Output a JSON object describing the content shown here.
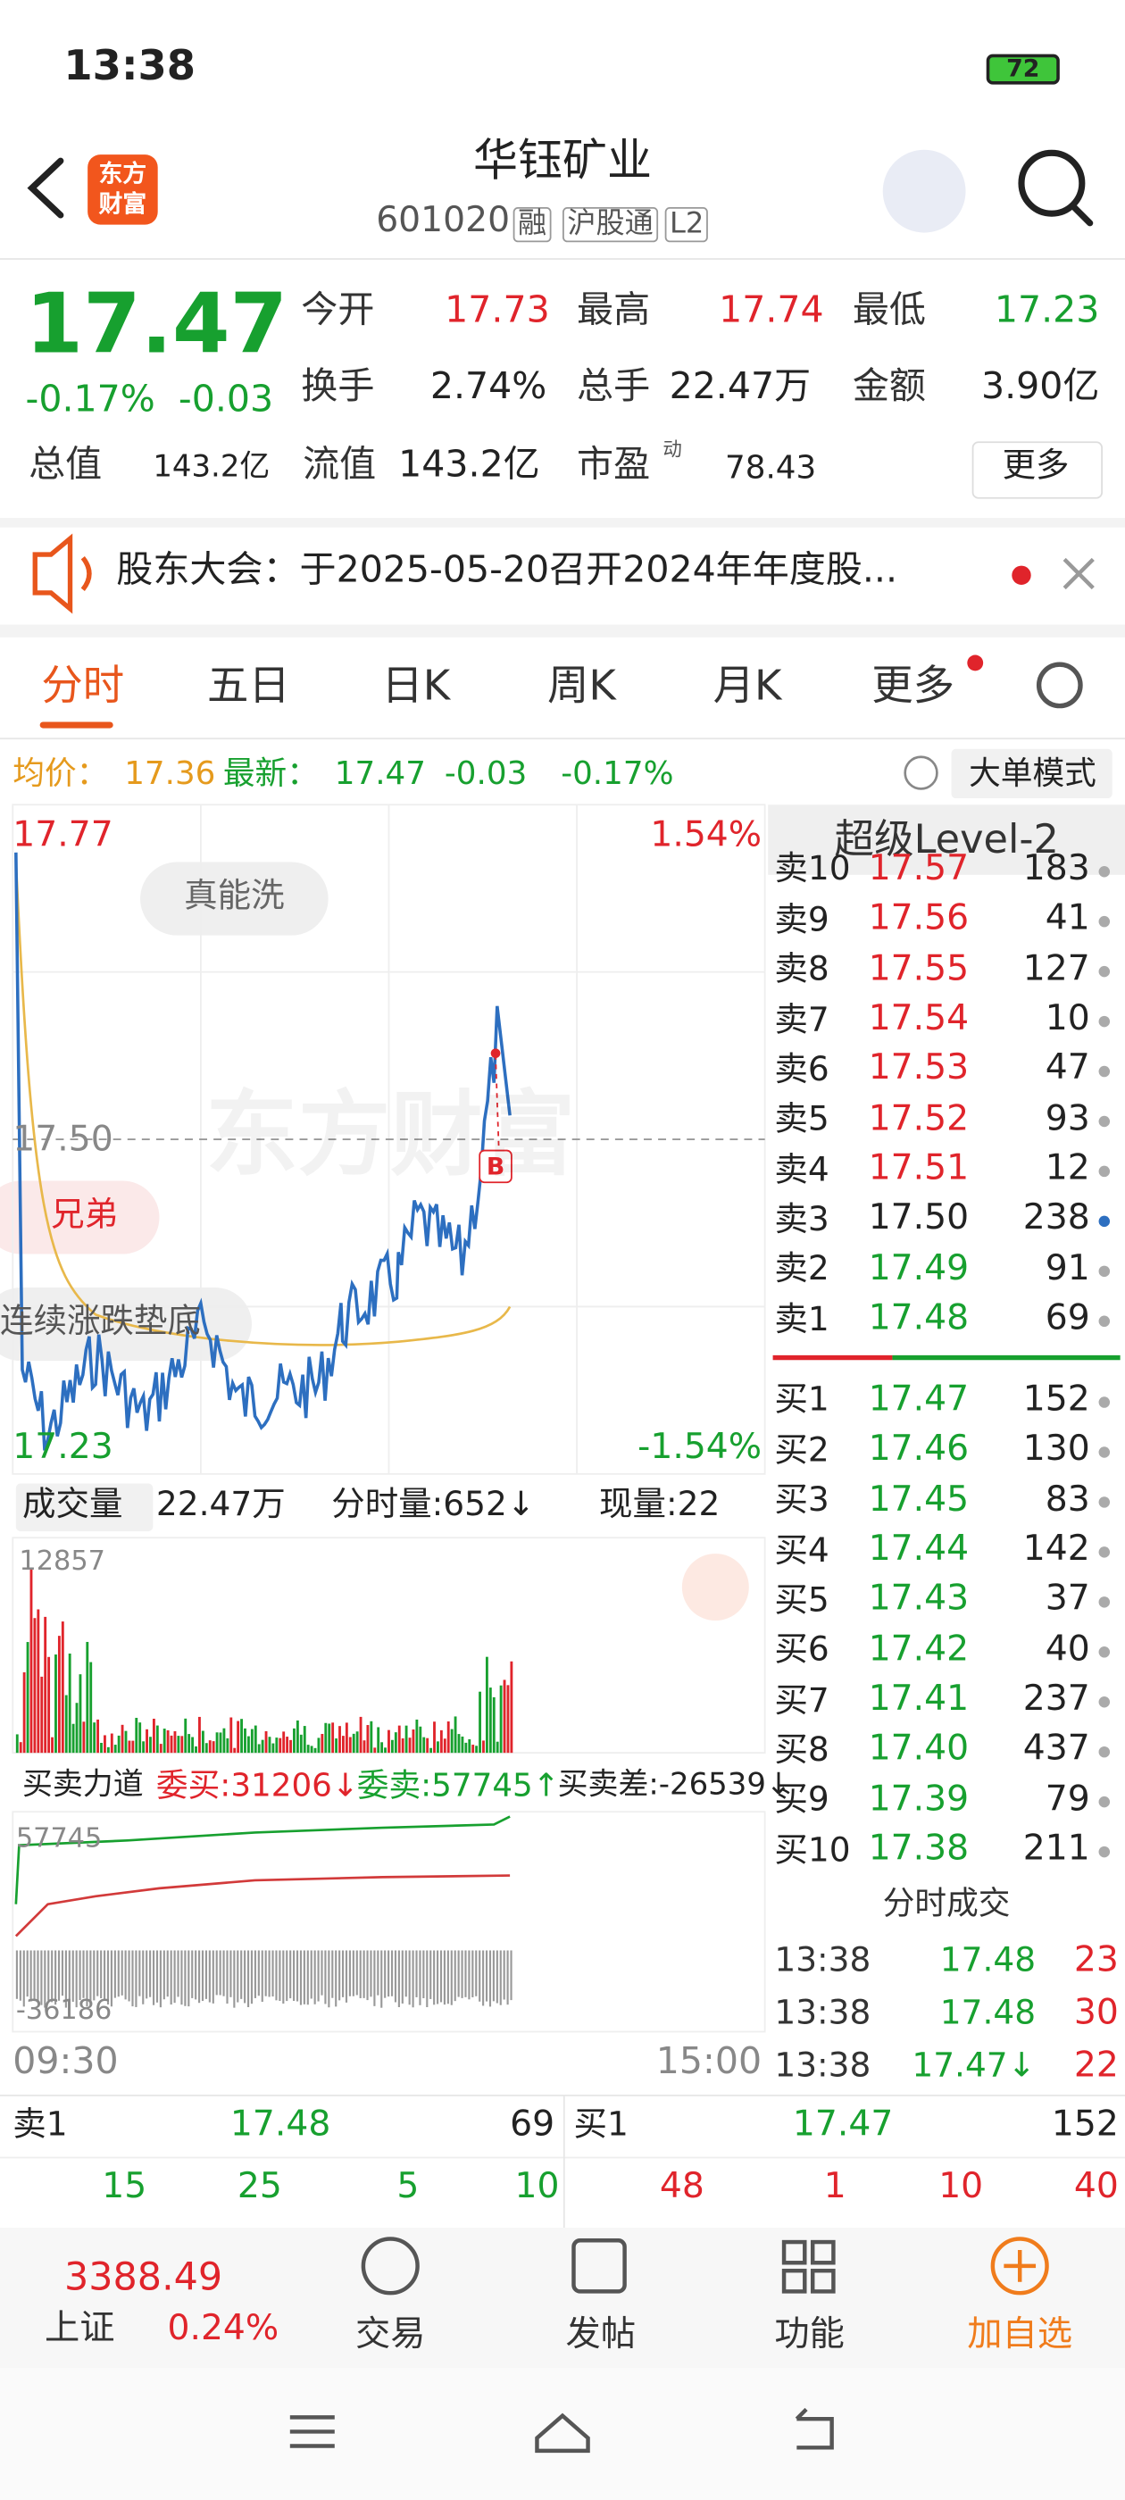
{
  "status_bar": {
    "time": "13:38",
    "battery": "72"
  },
  "header": {
    "title": "华钰矿业",
    "code": "601020",
    "tags": [
      "融",
      "沪股通",
      "L2"
    ],
    "logo": [
      "东方",
      "财富"
    ]
  },
  "quote": {
    "price": "17.47",
    "change_percent": "-0.17%",
    "change": "-0.03",
    "fields": [
      {
        "label": "今开",
        "value": "17.73"
      },
      {
        "label": "最高",
        "value": "17.74"
      },
      {
        "label": "最低",
        "value": "17.23"
      },
      {
        "label": "换手",
        "value": "2.74%"
      },
      {
        "label": "总手",
        "value": "22.47万"
      },
      {
        "label": "金额",
        "value": "3.90亿"
      },
      {
        "label": "总值",
        "value": "143.2亿"
      },
      {
        "label": "流值",
        "value": "143.2亿"
      },
      {
        "label": "市盈",
        "value": "78.43"
      }
    ],
    "pe_mark": "动",
    "more": "更多"
  },
  "notice": "股东大会：于2025-05-20召开2024年年度股...",
  "tabs": [
    "分时",
    "五日",
    "日K",
    "周K",
    "月K",
    "更多"
  ],
  "info": {
    "avg_label": "均价：",
    "avg": "17.36",
    "latest_label": "最新：",
    "latest": "17.47",
    "change": "-0.03",
    "change_percent": "-0.17%",
    "mode": "大单模式"
  },
  "chart": {
    "high": "17.77",
    "high_percent": "1.54%",
    "low": "17.23",
    "low_percent": "-1.54%",
    "mid": "17.50",
    "tags": [
      "真能洗",
      "兄弟",
      "连续涨跌垫底"
    ],
    "watermark": "东方财富",
    "marker": "B",
    "time_start": "09:30",
    "time_end": "15:00"
  },
  "volume": {
    "label": "成交量",
    "total": "22.47万",
    "minute": "分时量:652↓",
    "current": "现量:22",
    "max": "12857"
  },
  "force": {
    "label": "买卖力道",
    "bid": "委买:31206↓",
    "ask": "委卖:57745↑",
    "diff": "买卖差:-26539↓",
    "top": "57745",
    "bottom": "-36186"
  },
  "order_book": {
    "title": "超级Level-2",
    "asks": [
      {
        "label": "卖10",
        "price": "17.57",
        "volume": "183",
        "color": "#e0242b"
      },
      {
        "label": "卖9",
        "price": "17.56",
        "volume": "41",
        "color": "#e0242b"
      },
      {
        "label": "卖8",
        "price": "17.55",
        "volume": "127",
        "color": "#e0242b"
      },
      {
        "label": "卖7",
        "price": "17.54",
        "volume": "10",
        "color": "#e0242b"
      },
      {
        "label": "卖6",
        "price": "17.53",
        "volume": "47",
        "color": "#e0242b"
      },
      {
        "label": "卖5",
        "price": "17.52",
        "volume": "93",
        "color": "#e0242b"
      },
      {
        "label": "卖4",
        "price": "17.51",
        "volume": "12",
        "color": "#e0242b"
      },
      {
        "label": "卖3",
        "price": "17.50",
        "volume": "238",
        "color": "#222222"
      },
      {
        "label": "卖2",
        "price": "17.49",
        "volume": "91",
        "color": "#17a02f"
      },
      {
        "label": "卖1",
        "price": "17.48",
        "volume": "69",
        "color": "#17a02f"
      }
    ],
    "bids": [
      {
        "label": "买1",
        "price": "17.47",
        "volume": "152"
      },
      {
        "label": "买2",
        "price": "17.46",
        "volume": "130"
      },
      {
        "label": "买3",
        "price": "17.45",
        "volume": "83"
      },
      {
        "label": "买4",
        "price": "17.44",
        "volume": "142"
      },
      {
        "label": "买5",
        "price": "17.43",
        "volume": "37"
      },
      {
        "label": "买6",
        "price": "17.42",
        "volume": "40"
      },
      {
        "label": "买7",
        "price": "17.41",
        "volume": "237"
      },
      {
        "label": "买8",
        "price": "17.40",
        "volume": "437"
      },
      {
        "label": "买9",
        "price": "17.39",
        "volume": "79"
      },
      {
        "label": "买10",
        "price": "17.38",
        "volume": "211"
      }
    ]
  },
  "trades": {
    "title": "分时成交",
    "rows": [
      {
        "time": "13:38",
        "price": "17.48",
        "volume": "23"
      },
      {
        "time": "13:38",
        "price": "17.48",
        "volume": "30"
      },
      {
        "time": "13:38",
        "price": "17.47↓",
        "volume": "22"
      }
    ]
  },
  "quick": {
    "sell": {
      "label": "卖1",
      "price": "17.48",
      "volume": "69"
    },
    "buy": {
      "label": "买1",
      "price": "17.47",
      "volume": "152"
    },
    "sell_counts": [
      "15",
      "25",
      "5",
      "10"
    ],
    "buy_counts": [
      "48",
      "1",
      "10",
      "40"
    ]
  },
  "nav": {
    "index_value": "3388.49",
    "index_name": "上证",
    "index_change": "0.24%",
    "items": [
      "交易",
      "发帖",
      "功能",
      "加自选"
    ]
  }
}
